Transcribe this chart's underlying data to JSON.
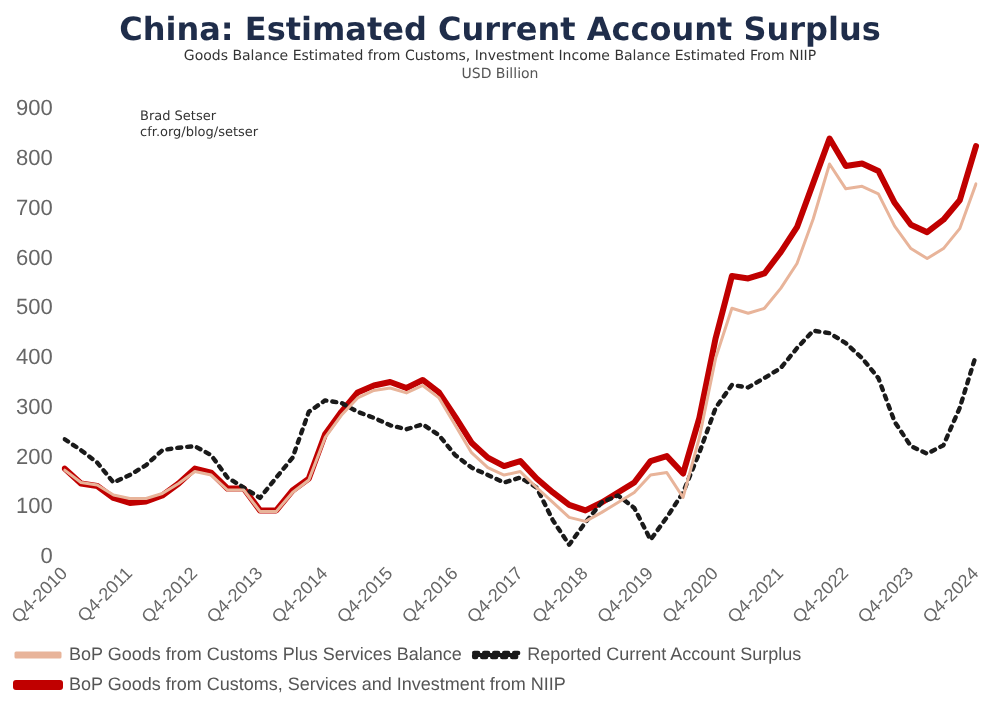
{
  "chart_data": {
    "type": "line",
    "title": "China: Estimated Current Account Surplus",
    "subtitle": "Goods Balance Estimated from Customs, Investment Income Balance Estimated From NIIP",
    "ylabel": "USD Billion",
    "annotations": [
      "Brad Setser",
      "cfr.org/blog/setser"
    ],
    "categories": [
      "Q4-2010",
      null,
      null,
      null,
      "Q4-2011",
      null,
      null,
      null,
      "Q4-2012",
      null,
      null,
      null,
      "Q4-2013",
      null,
      null,
      null,
      "Q4-2014",
      null,
      null,
      null,
      "Q4-2015",
      null,
      null,
      null,
      "Q4-2016",
      null,
      null,
      null,
      "Q4-2017",
      null,
      null,
      null,
      "Q4-2018",
      null,
      null,
      null,
      "Q4-2019",
      null,
      null,
      null,
      "Q4-2020",
      null,
      null,
      null,
      "Q4-2021",
      null,
      null,
      null,
      "Q4-2022",
      null,
      null,
      null,
      "Q4-2023",
      null,
      null,
      null,
      "Q4-2024"
    ],
    "series": [
      {
        "name": "BoP Goods from Customs Plus Services Balance",
        "color": "#e8b49a",
        "line_style": "solid",
        "values": [
          175,
          150,
          145,
          125,
          118,
          118,
          128,
          148,
          172,
          165,
          135,
          135,
          92,
          92,
          130,
          155,
          240,
          285,
          320,
          335,
          340,
          330,
          345,
          320,
          265,
          210,
          180,
          165,
          172,
          140,
          110,
          80,
          72,
          90,
          110,
          130,
          165,
          170,
          120,
          240,
          400,
          500,
          490,
          500,
          540,
          590,
          680,
          790,
          740,
          745,
          730,
          665,
          620,
          600,
          620,
          660,
          750
        ]
      },
      {
        "name": "Reported Current Account Surplus",
        "color": "#1a1a1a",
        "line_style": "dotted",
        "values": [
          237,
          215,
          190,
          150,
          165,
          185,
          215,
          220,
          223,
          205,
          160,
          140,
          119,
          160,
          200,
          292,
          315,
          310,
          292,
          280,
          265,
          257,
          267,
          245,
          205,
          180,
          165,
          150,
          160,
          140,
          74,
          25,
          70,
          110,
          124,
          99,
          35,
          80,
          130,
          210,
          300,
          346,
          341,
          360,
          380,
          420,
          455,
          450,
          430,
          400,
          360,
          272,
          223,
          208,
          225,
          300,
          406
        ]
      },
      {
        "name": "BoP Goods from Customs, Services and Investment from NIIP",
        "color": "#c00000",
        "line_style": "solid",
        "values": [
          178,
          148,
          143,
          119,
          109,
          112,
          124,
          148,
          178,
          170,
          138,
          138,
          94,
          94,
          134,
          158,
          247,
          292,
          331,
          345,
          352,
          340,
          356,
          331,
          282,
          230,
          200,
          183,
          193,
          158,
          130,
          105,
          94,
          110,
          130,
          150,
          193,
          203,
          168,
          280,
          440,
          565,
          560,
          570,
          613,
          663,
          752,
          841,
          786,
          791,
          776,
          712,
          668,
          653,
          678,
          717,
          826
        ]
      }
    ],
    "ylim": [
      0,
      900
    ],
    "yticks": [
      0,
      100,
      200,
      300,
      400,
      500,
      600,
      700,
      800,
      900
    ],
    "grid": false,
    "legend": "bottom",
    "marker": "none"
  }
}
